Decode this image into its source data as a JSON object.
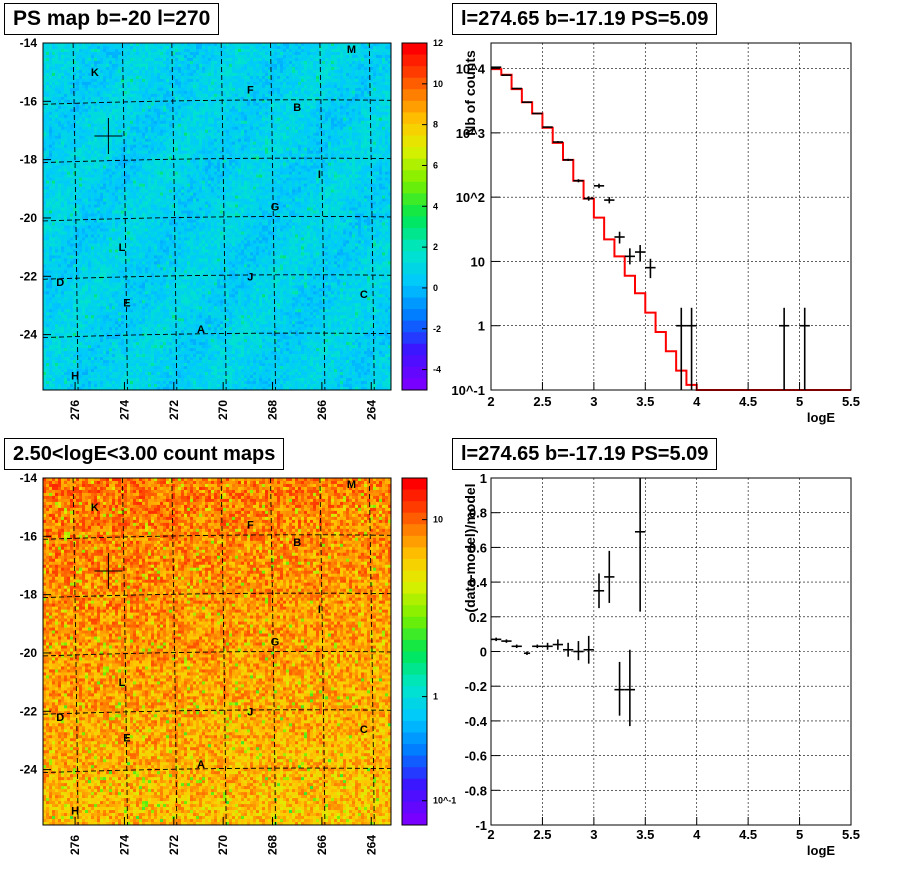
{
  "panels": {
    "top_left_title": "PS map b=-20 l=270",
    "top_right_title": "l=274.65 b=-17.19 PS=5.09",
    "bottom_left_title": "2.50<logE<3.00 count maps",
    "bottom_right_title": "l=274.65 b=-17.19 PS=5.09"
  },
  "chart_data": [
    {
      "type": "heatmap",
      "name": "PS map",
      "title": "PS map b=-20 l=270",
      "x_ticks": [
        "276",
        "274",
        "272",
        "270",
        "268",
        "266",
        "264"
      ],
      "y_ticks": [
        "-14",
        "-16",
        "-18",
        "-20",
        "-22",
        "-24"
      ],
      "colorbar_ticks": [
        "12",
        "10",
        "8",
        "6",
        "4",
        "2",
        "0",
        "-2",
        "-4"
      ],
      "colorbar_range": [
        -5,
        12
      ],
      "dominant_value": 0,
      "sources": [
        {
          "label": "K",
          "l": 275.2,
          "b": -15.0
        },
        {
          "label": "M",
          "l": 264.8,
          "b": -14.2
        },
        {
          "label": "F",
          "l": 268.9,
          "b": -15.6
        },
        {
          "label": "B",
          "l": 267.0,
          "b": -16.2
        },
        {
          "label": "I",
          "l": 266.1,
          "b": -18.5
        },
        {
          "label": "G",
          "l": 267.9,
          "b": -19.6
        },
        {
          "label": "L",
          "l": 274.1,
          "b": -21.0
        },
        {
          "label": "J",
          "l": 268.9,
          "b": -22.0
        },
        {
          "label": "D",
          "l": 276.6,
          "b": -22.2
        },
        {
          "label": "E",
          "l": 273.9,
          "b": -22.9
        },
        {
          "label": "C",
          "l": 264.3,
          "b": -22.6
        },
        {
          "label": "A",
          "l": 270.9,
          "b": -23.8
        },
        {
          "label": "H",
          "l": 276.0,
          "b": -25.4
        }
      ],
      "marker": {
        "l": 274.65,
        "b": -17.19
      }
    },
    {
      "type": "line",
      "title": "l=274.65 b=-17.19 PS=5.09",
      "xlabel": "logE",
      "ylabel": "Nb of counts",
      "y_scale": "log",
      "xlim": [
        2,
        5.5
      ],
      "ylim": [
        0.1,
        25000
      ],
      "x_ticks": [
        "2",
        "2.5",
        "3",
        "3.5",
        "4",
        "4.5",
        "5",
        "5.5"
      ],
      "y_ticks": [
        "10^-1",
        "1",
        "10",
        "10^2",
        "10^3",
        "10^4"
      ],
      "model_step": {
        "edges": [
          2.0,
          2.1,
          2.2,
          2.3,
          2.4,
          2.5,
          2.6,
          2.7,
          2.8,
          2.9,
          3.0,
          3.1,
          3.2,
          3.3,
          3.4,
          3.5,
          3.6,
          3.7,
          3.8,
          3.9,
          4.0,
          4.1,
          4.2,
          4.3,
          4.4,
          4.5,
          4.6,
          4.7,
          4.8,
          4.9,
          5.0,
          5.1,
          5.2,
          5.3,
          5.4,
          5.5
        ],
        "values": [
          9800,
          8000,
          4800,
          3000,
          2000,
          1200,
          700,
          380,
          180,
          95,
          48,
          22,
          12,
          6,
          3.2,
          1.6,
          0.8,
          0.4,
          0.2,
          0.12,
          0.1,
          0.1,
          0.1,
          0.1,
          0.1,
          0.1,
          0.1,
          0.1,
          0.1,
          0.1,
          0.1,
          0.1,
          0.1,
          0.1,
          0.1
        ]
      },
      "data_points": [
        {
          "x": 2.05,
          "y": 10500,
          "xerr": 0.05,
          "ylo": 10300,
          "yhi": 10700
        },
        {
          "x": 2.15,
          "y": 7900,
          "xerr": 0.05,
          "ylo": 7750,
          "yhi": 8050
        },
        {
          "x": 2.25,
          "y": 4900,
          "xerr": 0.05,
          "ylo": 4800,
          "yhi": 5000
        },
        {
          "x": 2.35,
          "y": 3000,
          "xerr": 0.05,
          "ylo": 2950,
          "yhi": 3050
        },
        {
          "x": 2.45,
          "y": 2000,
          "xerr": 0.05,
          "ylo": 1960,
          "yhi": 2040
        },
        {
          "x": 2.55,
          "y": 1230,
          "xerr": 0.05,
          "ylo": 1200,
          "yhi": 1260
        },
        {
          "x": 2.65,
          "y": 720,
          "xerr": 0.05,
          "ylo": 700,
          "yhi": 745
        },
        {
          "x": 2.75,
          "y": 380,
          "xerr": 0.05,
          "ylo": 365,
          "yhi": 395
        },
        {
          "x": 2.85,
          "y": 180,
          "xerr": 0.05,
          "ylo": 170,
          "yhi": 190
        },
        {
          "x": 2.95,
          "y": 95,
          "xerr": 0.05,
          "ylo": 88,
          "yhi": 103
        },
        {
          "x": 3.05,
          "y": 150,
          "xerr": 0.05,
          "ylo": 138,
          "yhi": 162
        },
        {
          "x": 3.15,
          "y": 90,
          "xerr": 0.05,
          "ylo": 80,
          "yhi": 100
        },
        {
          "x": 3.25,
          "y": 24,
          "xerr": 0.05,
          "ylo": 19,
          "yhi": 29
        },
        {
          "x": 3.35,
          "y": 12,
          "xerr": 0.05,
          "ylo": 9,
          "yhi": 16
        },
        {
          "x": 3.45,
          "y": 14,
          "xerr": 0.05,
          "ylo": 10,
          "yhi": 18
        },
        {
          "x": 3.55,
          "y": 8,
          "xerr": 0.05,
          "ylo": 5.5,
          "yhi": 11
        },
        {
          "x": 3.85,
          "y": 1,
          "xerr": 0.05,
          "ylo": 0.1,
          "yhi": 1.9
        },
        {
          "x": 3.95,
          "y": 1,
          "xerr": 0.05,
          "ylo": 0.1,
          "yhi": 1.9
        },
        {
          "x": 4.85,
          "y": 1,
          "xerr": 0.05,
          "ylo": 0.1,
          "yhi": 1.9
        },
        {
          "x": 5.05,
          "y": 1,
          "xerr": 0.05,
          "ylo": 0.1,
          "yhi": 1.9
        }
      ],
      "model_color": "#ff0000",
      "grid": true
    },
    {
      "type": "heatmap",
      "name": "count map",
      "title": "2.50<logE<3.00 count maps",
      "x_ticks": [
        "276",
        "274",
        "272",
        "270",
        "268",
        "266",
        "264"
      ],
      "y_ticks": [
        "-14",
        "-16",
        "-18",
        "-20",
        "-22",
        "-24"
      ],
      "colorbar_ticks": [
        "10",
        "1",
        "10^-1"
      ],
      "colorbar_scale": "log",
      "sources": [
        {
          "label": "K",
          "l": 275.2,
          "b": -15.0
        },
        {
          "label": "M",
          "l": 264.8,
          "b": -14.2
        },
        {
          "label": "F",
          "l": 268.9,
          "b": -15.6
        },
        {
          "label": "B",
          "l": 267.0,
          "b": -16.2
        },
        {
          "label": "I",
          "l": 266.1,
          "b": -18.5
        },
        {
          "label": "G",
          "l": 267.9,
          "b": -19.6
        },
        {
          "label": "L",
          "l": 274.1,
          "b": -21.0
        },
        {
          "label": "J",
          "l": 268.9,
          "b": -22.0
        },
        {
          "label": "D",
          "l": 276.6,
          "b": -22.2
        },
        {
          "label": "E",
          "l": 273.9,
          "b": -22.9
        },
        {
          "label": "C",
          "l": 264.3,
          "b": -22.6
        },
        {
          "label": "A",
          "l": 270.9,
          "b": -23.8
        },
        {
          "label": "H",
          "l": 276.0,
          "b": -25.4
        }
      ],
      "marker": {
        "l": 274.65,
        "b": -17.19
      }
    },
    {
      "type": "scatter",
      "title": "l=274.65 b=-17.19 PS=5.09",
      "xlabel": "logE",
      "ylabel": "(data-model)/model",
      "xlim": [
        2,
        5.5
      ],
      "ylim": [
        -1,
        1
      ],
      "x_ticks": [
        "2",
        "2.5",
        "3",
        "3.5",
        "4",
        "4.5",
        "5",
        "5.5"
      ],
      "y_ticks": [
        "1",
        "0.8",
        "0.6",
        "0.4",
        "0.2",
        "0",
        "-0.2",
        "-0.4",
        "-0.6",
        "-0.8",
        "-1"
      ],
      "data_points": [
        {
          "x": 2.05,
          "y": 0.07,
          "xerr": 0.05,
          "ylo": 0.06,
          "yhi": 0.08
        },
        {
          "x": 2.15,
          "y": 0.06,
          "xerr": 0.05,
          "ylo": 0.05,
          "yhi": 0.07
        },
        {
          "x": 2.25,
          "y": 0.03,
          "xerr": 0.05,
          "ylo": 0.02,
          "yhi": 0.04
        },
        {
          "x": 2.35,
          "y": -0.01,
          "xerr": 0.03,
          "ylo": -0.02,
          "yhi": 0.0
        },
        {
          "x": 2.45,
          "y": 0.03,
          "xerr": 0.05,
          "ylo": 0.02,
          "yhi": 0.04
        },
        {
          "x": 2.55,
          "y": 0.03,
          "xerr": 0.05,
          "ylo": 0.01,
          "yhi": 0.05
        },
        {
          "x": 2.65,
          "y": 0.04,
          "xerr": 0.05,
          "ylo": 0.01,
          "yhi": 0.07
        },
        {
          "x": 2.75,
          "y": 0.01,
          "xerr": 0.05,
          "ylo": -0.03,
          "yhi": 0.05
        },
        {
          "x": 2.85,
          "y": 0.0,
          "xerr": 0.05,
          "ylo": -0.05,
          "yhi": 0.06
        },
        {
          "x": 2.95,
          "y": 0.01,
          "xerr": 0.05,
          "ylo": -0.07,
          "yhi": 0.09
        },
        {
          "x": 3.05,
          "y": 0.35,
          "xerr": 0.05,
          "ylo": 0.25,
          "yhi": 0.45
        },
        {
          "x": 3.15,
          "y": 0.43,
          "xerr": 0.05,
          "ylo": 0.28,
          "yhi": 0.58
        },
        {
          "x": 3.25,
          "y": -0.22,
          "xerr": 0.05,
          "ylo": -0.37,
          "yhi": -0.06
        },
        {
          "x": 3.35,
          "y": -0.22,
          "xerr": 0.05,
          "ylo": -0.43,
          "yhi": 0.01
        },
        {
          "x": 3.45,
          "y": 0.69,
          "xerr": 0.05,
          "ylo": 0.23,
          "yhi": 1.0
        }
      ],
      "grid": true
    }
  ]
}
